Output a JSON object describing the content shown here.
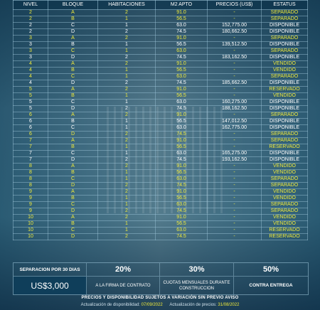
{
  "table": {
    "headers": [
      "NIVEL",
      "BLOQUE",
      "HABITACIONES",
      "M2 APTO",
      "PRECIOS (US$)",
      "ESTATUS"
    ],
    "rows": [
      [
        "2",
        "A",
        "2",
        "91.0",
        "-",
        "SEPARADO"
      ],
      [
        "2",
        "B",
        "1",
        "56.5",
        "-",
        "SEPARADO"
      ],
      [
        "2",
        "C",
        "1",
        "63.0",
        "152,775.00",
        "DISPONIBLE"
      ],
      [
        "2",
        "D",
        "2",
        "74.5",
        "180,662.50",
        "DISPONIBLE"
      ],
      [
        "3",
        "A",
        "2",
        "91.0",
        "-",
        "SEPARADO"
      ],
      [
        "3",
        "B",
        "1",
        "56.5",
        "139,512.50",
        "DISPONIBLE"
      ],
      [
        "3",
        "C",
        "1",
        "63.0",
        "-",
        "SEPARADO"
      ],
      [
        "3",
        "D",
        "2",
        "74.5",
        "183,162.50",
        "DISPONIBLE"
      ],
      [
        "4",
        "A",
        "2",
        "91.0",
        "-",
        "VENDIDO"
      ],
      [
        "4",
        "B",
        "1",
        "56.5",
        "-",
        "VENDIDO"
      ],
      [
        "4",
        "C",
        "1",
        "63.0",
        "-",
        "SEPARADO"
      ],
      [
        "4",
        "D",
        "2",
        "74.5",
        "185,662.50",
        "DISPONIBLE"
      ],
      [
        "5",
        "A",
        "2",
        "91.0",
        "-",
        "RESERVADO"
      ],
      [
        "5",
        "B",
        "1",
        "56.5",
        "-",
        "VENDIDO"
      ],
      [
        "5",
        "C",
        "1",
        "63.0",
        "160,275.00",
        "DISPONIBLE"
      ],
      [
        "5",
        "D",
        "2",
        "74.5",
        "188,162.50",
        "DISPONIBLE"
      ],
      [
        "6",
        "A",
        "2",
        "91.0",
        "-",
        "SEPARADO"
      ],
      [
        "6",
        "B",
        "1",
        "56.5",
        "147,012.50",
        "DISPONIBLE"
      ],
      [
        "6",
        "C",
        "1",
        "63.0",
        "162,775.00",
        "DISPONIBLE"
      ],
      [
        "6",
        "D",
        "2",
        "74.5",
        "-",
        "SEPARADO"
      ],
      [
        "7",
        "A",
        "2",
        "91.0",
        "-",
        "SEPARADO"
      ],
      [
        "7",
        "B",
        "1",
        "56.5",
        "-",
        "RESERVADO"
      ],
      [
        "7",
        "C",
        "1",
        "63.0",
        "165,275.00",
        "DISPONIBLE"
      ],
      [
        "7",
        "D",
        "2",
        "74.5",
        "193,162.50",
        "DISPONIBLE"
      ],
      [
        "8",
        "A",
        "2",
        "91.0",
        "-",
        "VENDIDO"
      ],
      [
        "8",
        "B",
        "1",
        "56.5",
        "-",
        "VENDIDO"
      ],
      [
        "8",
        "C",
        "1",
        "63.0",
        "-",
        "SEPARADO"
      ],
      [
        "8",
        "D",
        "2",
        "74.5",
        "-",
        "SEPARADO"
      ],
      [
        "9",
        "A",
        "2",
        "91.0",
        "-",
        "VENDIDO"
      ],
      [
        "9",
        "B",
        "1",
        "56.5",
        "-",
        "VENDIDO"
      ],
      [
        "9",
        "C",
        "1",
        "63.0",
        "-",
        "SEPARADO"
      ],
      [
        "9",
        "D",
        "2",
        "74.5",
        "-",
        "SEPARADO"
      ],
      [
        "10",
        "A",
        "2",
        "91.0",
        "-",
        "VENDIDO"
      ],
      [
        "10",
        "B",
        "1",
        "56.5",
        "-",
        "VENDIDO"
      ],
      [
        "10",
        "C",
        "1",
        "63.0",
        "-",
        "RESERVADO"
      ],
      [
        "10",
        "D",
        "2",
        "74.5",
        "-",
        "RESERVADO"
      ]
    ]
  },
  "summary": {
    "separation_label": "SEPARACION POR 30 DIAS",
    "separation_amount": "US$3,000",
    "pct_1": "20%",
    "desc_1": "A LA FIRMA DE CONTRATO",
    "pct_2": "30%",
    "desc_2": "CUOTAS MENSUALES DURANTE CONSTRUCCION",
    "pct_3": "50%",
    "desc_3": "CONTRA ENTREGA"
  },
  "footer": {
    "note": "PRECIOS Y DISPONIBILIDAD SUJETOS A VARIACIÓN SIN PREVIO AVISO",
    "availability_label": "Actualización de disponibilidad:",
    "availability_date": "07/09/2022",
    "prices_label": "Actualización de precios:",
    "prices_date": "31/08/2022"
  },
  "colors": {
    "status_highlight": "#f0ea3a",
    "status_available": "#ffffff",
    "background": "#0c2c40"
  }
}
